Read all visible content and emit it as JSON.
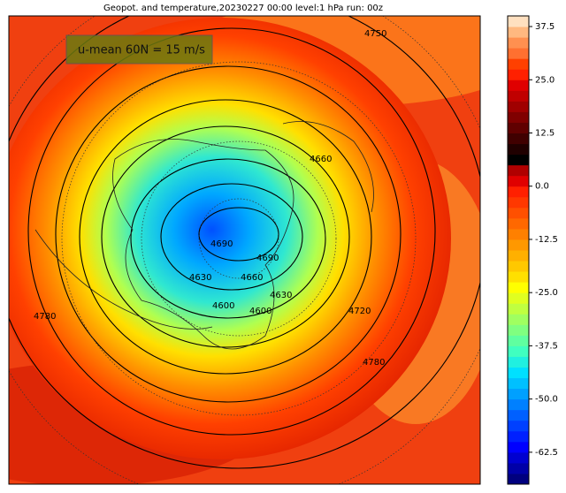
{
  "title": "Geopot. and temperature,20230227 00:00 level:1 hPa run: 00z",
  "annotation": "u-mean 60N = 15 m/s",
  "contour_labels": [
    4750,
    4660,
    4690,
    4690,
    4660,
    4630,
    4630,
    4600,
    4600,
    4720,
    4780,
    4780
  ],
  "colorbar": {
    "lim": [
      -70,
      40
    ],
    "ticks": [
      37.5,
      {
        "value": 25,
        "label": "25.0"
      },
      12.5,
      {
        "value": 0,
        "label": "0.0"
      },
      -12.5,
      {
        "value": -25,
        "label": "-25.0"
      },
      -37.5,
      {
        "value": -50,
        "label": "-50.0"
      },
      -62.5
    ],
    "colors": [
      "#00007f",
      "#0000a8",
      "#0000d0",
      "#0000ff",
      "#0020ff",
      "#0040ff",
      "#0060ff",
      "#0080ff",
      "#00a0ff",
      "#00c0ff",
      "#00e0ff",
      "#20f0e0",
      "#40ffc0",
      "#60ffa0",
      "#80ff80",
      "#a0ff60",
      "#c0ff40",
      "#e0ff20",
      "#ffff00",
      "#ffe000",
      "#ffc800",
      "#ffb000",
      "#ff9800",
      "#ff8000",
      "#ff6800",
      "#ff5000",
      "#ff3800",
      "#ff2000",
      "#e00000",
      "#b00000",
      "#000000",
      "#200000",
      "#400000",
      "#600000",
      "#800000",
      "#a00000",
      "#c00000",
      "#e00000",
      "#ff2000",
      "#ff4000",
      "#ff7030",
      "#ff9050",
      "#ffb880",
      "#ffe0c0"
    ]
  }
}
